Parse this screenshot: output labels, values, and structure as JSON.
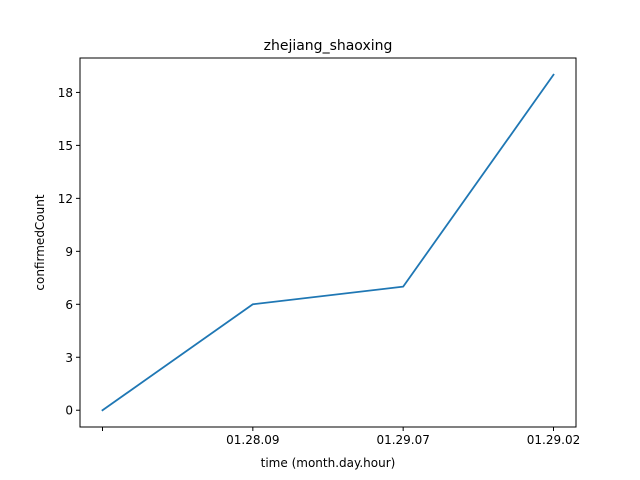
{
  "chart_data": {
    "type": "line",
    "title": "zhejiang_shaoxing",
    "xlabel": "time (month.day.hour)",
    "ylabel": "confirmedCount",
    "categories": [
      "",
      "01.28.09",
      "01.29.07",
      "01.29.02"
    ],
    "series": [
      {
        "values": [
          0,
          6,
          7,
          19
        ],
        "color": "#1f77b4"
      }
    ],
    "yticks": [
      0,
      3,
      6,
      9,
      12,
      15,
      18
    ],
    "ylim": [
      -0.95,
      19.95
    ],
    "grid": false,
    "legend": "none"
  }
}
